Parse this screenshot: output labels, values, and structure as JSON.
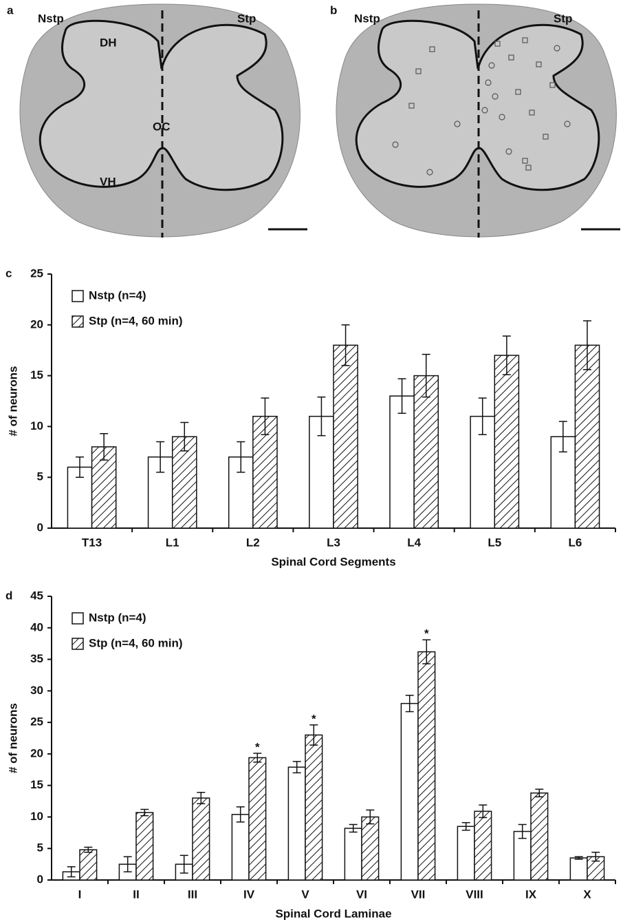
{
  "panels": [
    {
      "label": "a",
      "left": "Nstp",
      "right": "Stp",
      "regions": [
        "DH",
        "OC",
        "VH"
      ]
    },
    {
      "label": "b",
      "left": "Nstp",
      "right": "Stp"
    }
  ],
  "chart_data": [
    {
      "type": "bar",
      "panel_label": "c",
      "x_label": "Spinal Cord Segments",
      "y_label": "# of neurons",
      "categories": [
        "T13",
        "L1",
        "L2",
        "L3",
        "L4",
        "L5",
        "L6"
      ],
      "series": [
        {
          "name": "Nstp (n=4)",
          "color": "#ffffff",
          "hatch": false,
          "values": [
            6,
            7,
            7,
            11,
            13,
            11,
            9
          ],
          "errors": [
            1,
            1.5,
            1.5,
            1.9,
            1.7,
            1.8,
            1.5
          ]
        },
        {
          "name": "Stp (n=4, 60 min)",
          "color": "#ffffff",
          "hatch": true,
          "values": [
            8,
            9,
            11,
            18,
            15,
            17,
            18
          ],
          "errors": [
            1.3,
            1.4,
            1.8,
            2,
            2.1,
            1.9,
            2.4
          ]
        }
      ],
      "ylim": [
        0,
        25
      ],
      "yticks": [
        0,
        5,
        10,
        15,
        20,
        25
      ],
      "grid": false,
      "legend": "top-left"
    },
    {
      "type": "bar",
      "panel_label": "d",
      "x_label": "Spinal Cord Laminae",
      "y_label": "# of neurons",
      "categories": [
        "I",
        "II",
        "III",
        "IV",
        "V",
        "VI",
        "VII",
        "VIII",
        "IX",
        "X"
      ],
      "series": [
        {
          "name": "Nstp (n=4)",
          "color": "#ffffff",
          "hatch": false,
          "values": [
            1.3,
            2.5,
            2.5,
            10.4,
            17.9,
            8.2,
            28,
            8.5,
            7.7,
            3.5
          ],
          "errors": [
            0.8,
            1.2,
            1.4,
            1.2,
            0.9,
            0.6,
            1.3,
            0.6,
            1.1,
            0.2
          ]
        },
        {
          "name": "Stp (n=4, 60 min)",
          "color": "#ffffff",
          "hatch": true,
          "values": [
            4.8,
            10.7,
            13,
            19.4,
            23,
            10,
            36.2,
            10.9,
            13.8,
            3.7
          ],
          "errors": [
            0.4,
            0.5,
            0.9,
            0.7,
            1.6,
            1.1,
            1.9,
            1,
            0.6,
            0.7
          ]
        }
      ],
      "annotations": [
        {
          "text": "*",
          "x": "IV"
        },
        {
          "text": "*",
          "x": "V"
        },
        {
          "text": "*",
          "x": "VII"
        }
      ],
      "ylim": [
        0,
        45
      ],
      "yticks": [
        0,
        5,
        10,
        15,
        20,
        25,
        30,
        35,
        40,
        45
      ],
      "grid": false,
      "legend": "top-left"
    }
  ]
}
